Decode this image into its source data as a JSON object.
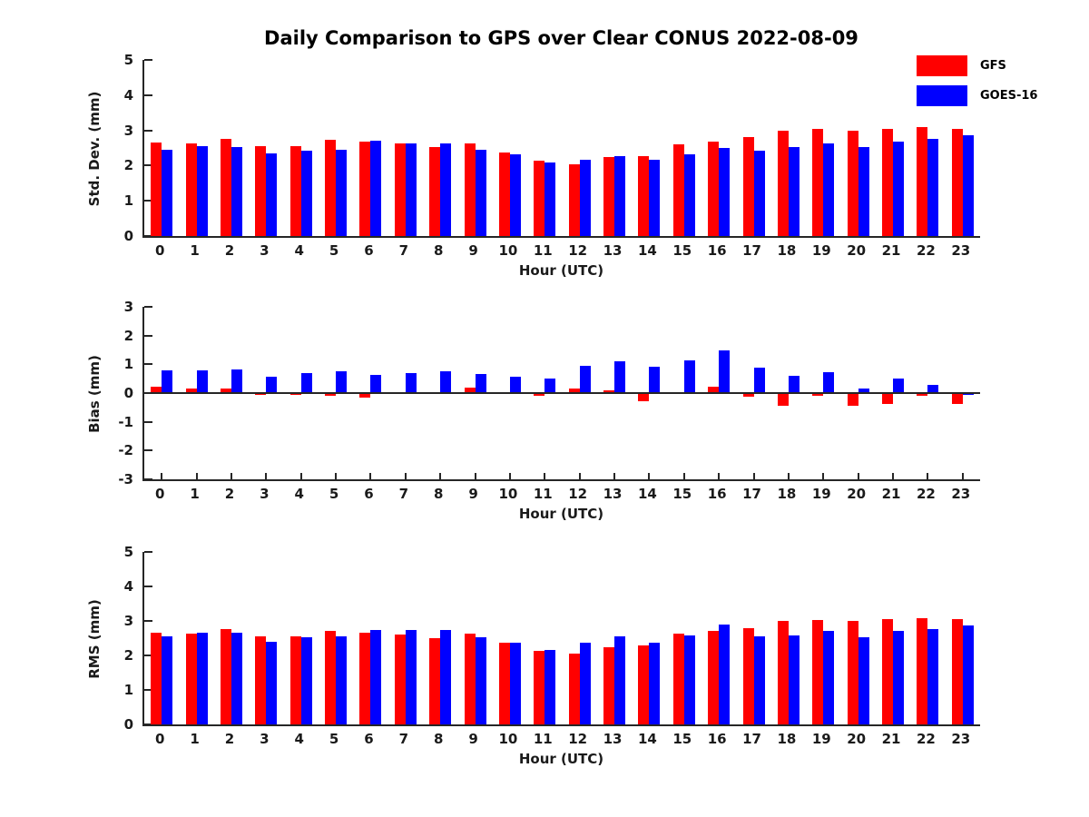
{
  "title": "Daily Comparison to GPS over Clear CONUS 2022-08-09",
  "legend": {
    "position": "top-right-outside",
    "items": [
      {
        "label": "GFS",
        "color": "#ff0000"
      },
      {
        "label": "GOES-16",
        "color": "#0000ff"
      }
    ]
  },
  "chart_data": [
    {
      "type": "bar",
      "panel": "std-dev",
      "ylabel": "Std. Dev. (mm)",
      "xlabel": "Hour (UTC)",
      "ylim": [
        0,
        5
      ],
      "yticks": [
        0,
        1,
        2,
        3,
        4,
        5
      ],
      "grid": false,
      "categories": [
        "0",
        "1",
        "2",
        "3",
        "4",
        "5",
        "6",
        "7",
        "8",
        "9",
        "10",
        "11",
        "12",
        "13",
        "14",
        "15",
        "16",
        "17",
        "18",
        "19",
        "20",
        "21",
        "22",
        "23"
      ],
      "series": [
        {
          "name": "GFS",
          "color": "#ff0000",
          "values": [
            2.66,
            2.63,
            2.76,
            2.56,
            2.56,
            2.72,
            2.68,
            2.62,
            2.52,
            2.62,
            2.38,
            2.13,
            2.04,
            2.25,
            2.28,
            2.61,
            2.69,
            2.81,
            2.98,
            3.04,
            2.99,
            3.03,
            3.1,
            3.04
          ]
        },
        {
          "name": "GOES-16",
          "color": "#0000ff",
          "values": [
            2.44,
            2.56,
            2.52,
            2.34,
            2.43,
            2.46,
            2.7,
            2.64,
            2.63,
            2.45,
            2.32,
            2.09,
            2.17,
            2.28,
            2.17,
            2.33,
            2.51,
            2.41,
            2.52,
            2.62,
            2.52,
            2.67,
            2.77,
            2.87
          ]
        }
      ]
    },
    {
      "type": "bar",
      "panel": "bias",
      "ylabel": "Bias (mm)",
      "xlabel": "Hour (UTC)",
      "ylim": [
        -3,
        3
      ],
      "yticks": [
        -3,
        -2,
        -1,
        0,
        1,
        2,
        3
      ],
      "grid": false,
      "categories": [
        "0",
        "1",
        "2",
        "3",
        "4",
        "5",
        "6",
        "7",
        "8",
        "9",
        "10",
        "11",
        "12",
        "13",
        "14",
        "15",
        "16",
        "17",
        "18",
        "19",
        "20",
        "21",
        "22",
        "23"
      ],
      "series": [
        {
          "name": "GFS",
          "color": "#ff0000",
          "values": [
            0.21,
            0.15,
            0.17,
            -0.06,
            -0.05,
            -0.1,
            -0.17,
            -0.03,
            -0.03,
            0.18,
            -0.03,
            -0.1,
            0.15,
            0.08,
            -0.27,
            0.02,
            0.23,
            -0.12,
            -0.43,
            -0.1,
            -0.43,
            -0.38,
            -0.11,
            -0.38
          ]
        },
        {
          "name": "GOES-16",
          "color": "#0000ff",
          "values": [
            0.8,
            0.8,
            0.81,
            0.56,
            0.7,
            0.75,
            0.63,
            0.7,
            0.77,
            0.65,
            0.58,
            0.52,
            0.96,
            1.1,
            0.93,
            1.14,
            1.5,
            0.9,
            0.59,
            0.74,
            0.17,
            0.51,
            0.29,
            -0.06
          ]
        }
      ]
    },
    {
      "type": "bar",
      "panel": "rms",
      "ylabel": "RMS (mm)",
      "xlabel": "Hour (UTC)",
      "ylim": [
        0,
        5
      ],
      "yticks": [
        0,
        1,
        2,
        3,
        4,
        5
      ],
      "grid": false,
      "categories": [
        "0",
        "1",
        "2",
        "3",
        "4",
        "5",
        "6",
        "7",
        "8",
        "9",
        "10",
        "11",
        "12",
        "13",
        "14",
        "15",
        "16",
        "17",
        "18",
        "19",
        "20",
        "21",
        "22",
        "23"
      ],
      "series": [
        {
          "name": "GFS",
          "color": "#ff0000",
          "values": [
            2.67,
            2.63,
            2.76,
            2.56,
            2.56,
            2.7,
            2.67,
            2.61,
            2.51,
            2.62,
            2.38,
            2.13,
            2.05,
            2.24,
            2.28,
            2.62,
            2.7,
            2.8,
            2.99,
            3.03,
            3.0,
            3.04,
            3.09,
            3.05
          ]
        },
        {
          "name": "GOES-16",
          "color": "#0000ff",
          "values": [
            2.54,
            2.66,
            2.65,
            2.39,
            2.53,
            2.56,
            2.74,
            2.73,
            2.74,
            2.53,
            2.38,
            2.15,
            2.37,
            2.54,
            2.36,
            2.59,
            2.89,
            2.56,
            2.57,
            2.7,
            2.52,
            2.7,
            2.77,
            2.87
          ]
        }
      ]
    }
  ]
}
